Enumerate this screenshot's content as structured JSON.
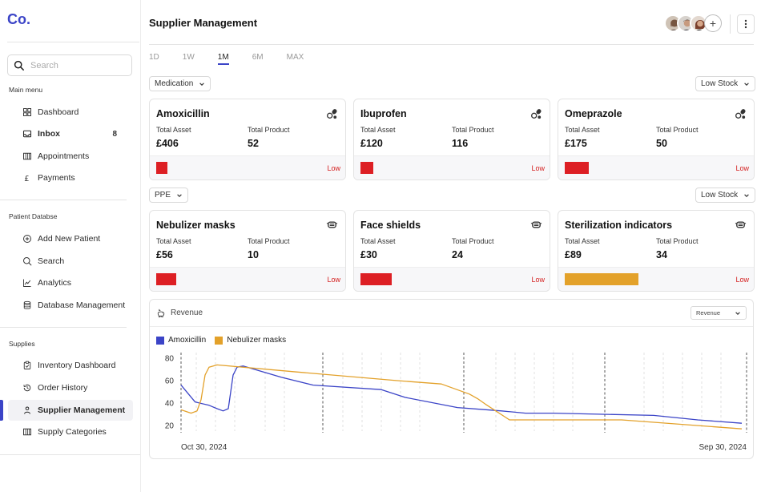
{
  "sidebar": {
    "logo": "Co.",
    "search_placeholder": "Search",
    "sections": {
      "main": "Main menu",
      "patient": "Patient Databse",
      "supplies": "Supplies"
    },
    "main_items": {
      "dashboard": "Dashboard",
      "inbox": "Inbox",
      "inbox_count": "8",
      "appointments": "Appointments",
      "payments": "Payments"
    },
    "patient_items": {
      "add": "Add New Patient",
      "search": "Search",
      "analytics": "Analytics",
      "db": "Database Management"
    },
    "supplies_items": {
      "inventory": "Inventory Dashboard",
      "history": "Order History",
      "supplier": "Supplier Management",
      "categories": "Supply Categories"
    }
  },
  "header": {
    "title": "Supplier Management",
    "add_label": "+"
  },
  "tabs": [
    "1D",
    "1W",
    "1M",
    "6M",
    "MAX"
  ],
  "group1": {
    "filter": "Medication",
    "sort": "Low Stock",
    "cards": [
      {
        "name": "Amoxicillin",
        "asset_label": "Total Asset",
        "product_label": "Total Product",
        "asset": "£406",
        "product": "52",
        "status": "Low",
        "level": 0.06,
        "bar_color": "#dd1f24"
      },
      {
        "name": "Ibuprofen",
        "asset_label": "Total Asset",
        "product_label": "Total Product",
        "asset": "£120",
        "product": "116",
        "status": "Low",
        "level": 0.07,
        "bar_color": "#dd1f24"
      },
      {
        "name": "Omeprazole",
        "asset_label": "Total Asset",
        "product_label": "Total Product",
        "asset": "£175",
        "product": "50",
        "status": "Low",
        "level": 0.13,
        "bar_color": "#dd1f24"
      }
    ]
  },
  "group2": {
    "filter": "PPE",
    "sort": "Low Stock",
    "cards": [
      {
        "name": "Nebulizer masks",
        "asset_label": "Total Asset",
        "product_label": "Total Product",
        "asset": "£56",
        "product": "10",
        "status": "Low",
        "level": 0.11,
        "bar_color": "#dd1f24"
      },
      {
        "name": "Face shields",
        "asset_label": "Total Asset",
        "product_label": "Total Product",
        "asset": "£30",
        "product": "24",
        "status": "Low",
        "level": 0.17,
        "bar_color": "#dd1f24"
      },
      {
        "name": "Sterilization indicators",
        "asset_label": "Total Asset",
        "product_label": "Total Product",
        "asset": "£89",
        "product": "34",
        "status": "Low",
        "level": 0.4,
        "bar_color": "#e3a12a"
      }
    ]
  },
  "revenue": {
    "title": "Revenue",
    "dropdown": "Revenue"
  },
  "chart_data": {
    "type": "line",
    "ylim": [
      15,
      85
    ],
    "yticks": [
      20,
      40,
      60,
      80
    ],
    "x_start_label": "Oct 30, 2024",
    "x_end_label": "Sep 30, 2024",
    "grid": "vertical dashed",
    "legend_position": "top-left",
    "series": [
      {
        "name": "Amoxicillin",
        "color": "#3b44c7",
        "points": [
          [
            0,
            56
          ],
          [
            0.035,
            41
          ],
          [
            0.07,
            38
          ],
          [
            0.09,
            35
          ],
          [
            0.105,
            33
          ],
          [
            0.118,
            35
          ],
          [
            0.13,
            65
          ],
          [
            0.14,
            72
          ],
          [
            0.155,
            73
          ],
          [
            0.25,
            63
          ],
          [
            0.33,
            56
          ],
          [
            0.5,
            52
          ],
          [
            0.56,
            45
          ],
          [
            0.69,
            36
          ],
          [
            0.8,
            33
          ],
          [
            0.86,
            31
          ],
          [
            0.93,
            31
          ],
          [
            1.18,
            29
          ],
          [
            1.29,
            25
          ],
          [
            1.4,
            22
          ]
        ]
      },
      {
        "name": "Nebulizer masks",
        "color": "#e3a12a",
        "points": [
          [
            0,
            34
          ],
          [
            0.025,
            31
          ],
          [
            0.04,
            33
          ],
          [
            0.05,
            43
          ],
          [
            0.06,
            65
          ],
          [
            0.07,
            72
          ],
          [
            0.09,
            74
          ],
          [
            0.28,
            68
          ],
          [
            0.54,
            60
          ],
          [
            0.65,
            57
          ],
          [
            0.72,
            48
          ],
          [
            0.74,
            44
          ],
          [
            0.76,
            39
          ],
          [
            0.82,
            25
          ],
          [
            0.9,
            25
          ],
          [
            1.1,
            25
          ],
          [
            1.4,
            17
          ]
        ]
      }
    ]
  }
}
